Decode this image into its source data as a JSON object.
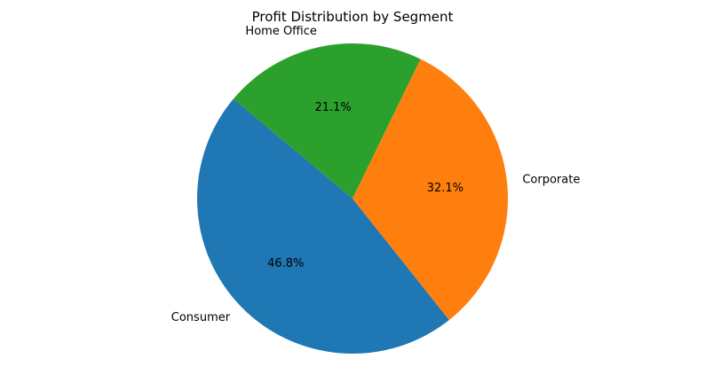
{
  "chart_data": {
    "type": "pie",
    "title": "Profit Distribution by Segment",
    "categories": [
      "Consumer",
      "Corporate",
      "Home Office"
    ],
    "values": [
      46.8,
      32.1,
      21.1
    ],
    "percent_labels": [
      "46.8%",
      "32.1%",
      "21.1%"
    ],
    "colors": [
      "#1f77b4",
      "#ff7f0e",
      "#2ca02c"
    ],
    "start_angle_deg": 140,
    "direction": "counterclockwise",
    "legend": "none"
  }
}
